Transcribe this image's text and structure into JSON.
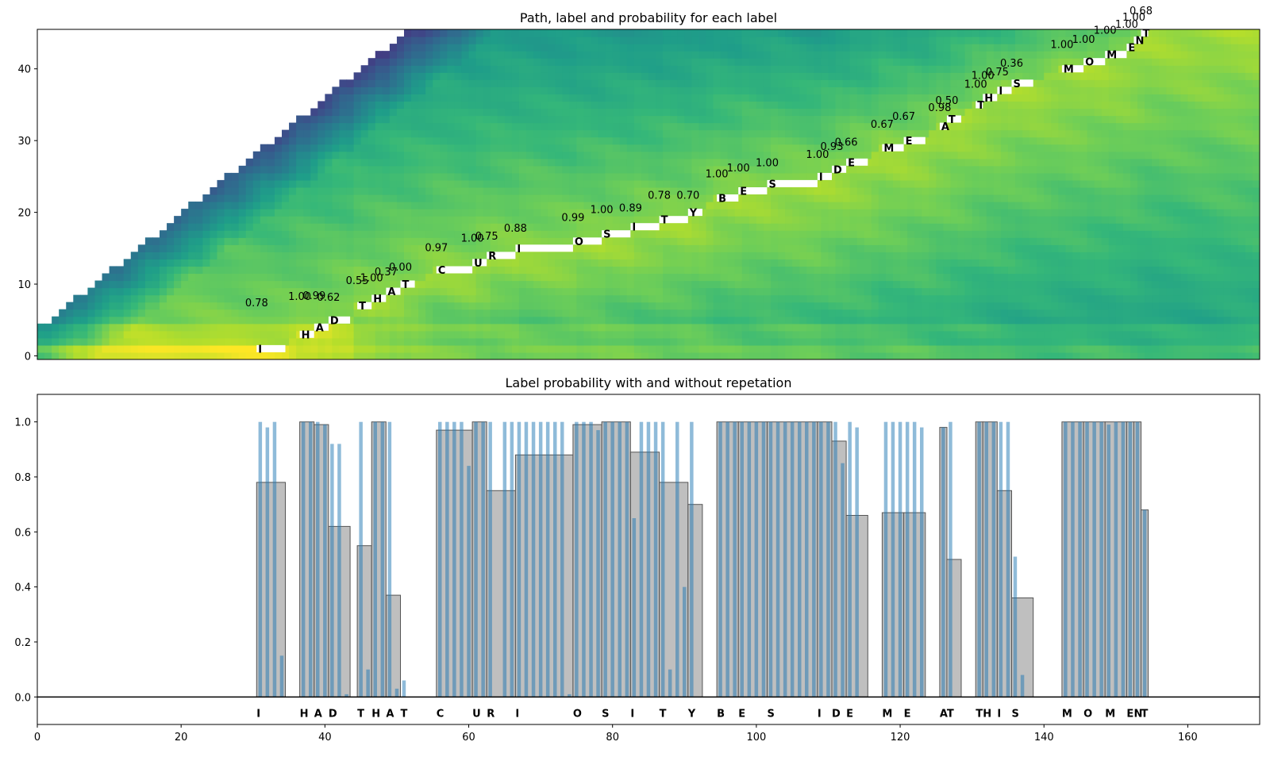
{
  "chart_data": [
    {
      "type": "heatmap",
      "title": "Path, label and probability for each label",
      "xlim": [
        0,
        170
      ],
      "ylim": [
        0,
        45
      ],
      "yticks": [
        0,
        10,
        20,
        30,
        40
      ],
      "colormap": "viridis",
      "segments": [
        {
          "label": "I",
          "start": 30.5,
          "end": 34.5,
          "y": 1,
          "score": 0.78
        },
        {
          "label": "H",
          "start": 36.5,
          "end": 38.5,
          "y": 3,
          "score": 1.0
        },
        {
          "label": "A",
          "start": 38.5,
          "end": 40.5,
          "y": 4,
          "score": 0.99
        },
        {
          "label": "D",
          "start": 40.5,
          "end": 43.5,
          "y": 5,
          "score": 0.62
        },
        {
          "label": "T",
          "start": 44.5,
          "end": 46.5,
          "y": 7,
          "score": 0.55
        },
        {
          "label": "H",
          "start": 46.5,
          "end": 48.5,
          "y": 8,
          "score": 1.0
        },
        {
          "label": "A",
          "start": 48.5,
          "end": 50.5,
          "y": 9,
          "score": 0.37
        },
        {
          "label": "T",
          "start": 50.5,
          "end": 52.5,
          "y": 10,
          "score": 0.0
        },
        {
          "label": "C",
          "start": 55.5,
          "end": 60.5,
          "y": 12,
          "score": 0.97
        },
        {
          "label": "U",
          "start": 60.5,
          "end": 62.5,
          "y": 13,
          "score": 1.0
        },
        {
          "label": "R",
          "start": 62.5,
          "end": 66.5,
          "y": 14,
          "score": 0.75
        },
        {
          "label": "I",
          "start": 66.5,
          "end": 74.5,
          "y": 15,
          "score": 0.88
        },
        {
          "label": "O",
          "start": 74.5,
          "end": 78.5,
          "y": 16,
          "score": 0.99
        },
        {
          "label": "S",
          "start": 78.5,
          "end": 82.5,
          "y": 17,
          "score": 1.0
        },
        {
          "label": "I",
          "start": 82.5,
          "end": 86.5,
          "y": 18,
          "score": 0.89
        },
        {
          "label": "T",
          "start": 86.5,
          "end": 90.5,
          "y": 19,
          "score": 0.78
        },
        {
          "label": "Y",
          "start": 90.5,
          "end": 92.5,
          "y": 20,
          "score": 0.7
        },
        {
          "label": "B",
          "start": 94.5,
          "end": 97.5,
          "y": 22,
          "score": 1.0
        },
        {
          "label": "E",
          "start": 97.5,
          "end": 101.5,
          "y": 23,
          "score": 1.0
        },
        {
          "label": "S",
          "start": 101.5,
          "end": 108.5,
          "y": 24,
          "score": 1.0
        },
        {
          "label": "I",
          "start": 108.5,
          "end": 110.5,
          "y": 25,
          "score": 1.0
        },
        {
          "label": "D",
          "start": 110.5,
          "end": 112.5,
          "y": 26,
          "score": 0.93
        },
        {
          "label": "E",
          "start": 112.5,
          "end": 115.5,
          "y": 27,
          "score": 0.66
        },
        {
          "label": "M",
          "start": 117.5,
          "end": 120.5,
          "y": 29,
          "score": 0.67
        },
        {
          "label": "E",
          "start": 120.5,
          "end": 123.5,
          "y": 30,
          "score": 0.67
        },
        {
          "label": "A",
          "start": 125.5,
          "end": 126.5,
          "y": 32,
          "score": 0.98
        },
        {
          "label": "T",
          "start": 126.5,
          "end": 128.5,
          "y": 33,
          "score": 0.5
        },
        {
          "label": "T",
          "start": 130.5,
          "end": 131.5,
          "y": 35,
          "score": 1.0
        },
        {
          "label": "H",
          "start": 131.5,
          "end": 133.5,
          "y": 36,
          "score": 1.0
        },
        {
          "label": "I",
          "start": 133.5,
          "end": 135.5,
          "y": 37,
          "score": 0.75
        },
        {
          "label": "S",
          "start": 135.5,
          "end": 138.5,
          "y": 38,
          "score": 0.36
        },
        {
          "label": "M",
          "start": 142.5,
          "end": 145.5,
          "y": 40,
          "score": 1.0
        },
        {
          "label": "O",
          "start": 145.5,
          "end": 148.5,
          "y": 41,
          "score": 1.0
        },
        {
          "label": "M",
          "start": 148.5,
          "end": 151.5,
          "y": 42,
          "score": 1.0
        },
        {
          "label": "E",
          "start": 151.5,
          "end": 152.5,
          "y": 43,
          "score": 1.0
        },
        {
          "label": "N",
          "start": 152.5,
          "end": 153.5,
          "y": 44,
          "score": 1.0
        },
        {
          "label": "T",
          "start": 153.5,
          "end": 154.5,
          "y": 45,
          "score": 0.68
        }
      ]
    },
    {
      "type": "bar",
      "title": "Label probability with and without repetation",
      "xlim": [
        0,
        170
      ],
      "ylim": [
        -0.1,
        1.1
      ],
      "xticks": [
        0,
        20,
        40,
        60,
        80,
        100,
        120,
        140,
        160
      ],
      "yticks": [
        "0.0",
        "0.2",
        "0.4",
        "0.6",
        "0.8",
        "1.0"
      ],
      "series": [
        {
          "kind": "segment-average",
          "color": "#bfbfbf",
          "values": [
            0.78,
            1.0,
            0.99,
            0.62,
            0.55,
            1.0,
            0.37,
            0.0,
            0.97,
            1.0,
            0.75,
            0.88,
            0.99,
            1.0,
            0.89,
            0.78,
            0.7,
            1.0,
            1.0,
            1.0,
            1.0,
            0.93,
            0.66,
            0.67,
            0.67,
            0.98,
            0.5,
            1.0,
            1.0,
            0.75,
            0.36,
            1.0,
            1.0,
            1.0,
            1.0,
            1.0,
            0.68
          ]
        },
        {
          "kind": "per-frame",
          "color": "#1f77b4",
          "x": [
            31,
            32,
            33,
            34,
            37,
            38,
            39,
            40,
            41,
            42,
            43,
            45,
            46,
            47,
            48,
            49,
            50,
            51,
            52,
            56,
            57,
            58,
            59,
            60,
            61,
            62,
            63,
            64,
            65,
            66,
            67,
            68,
            69,
            70,
            71,
            72,
            73,
            74,
            75,
            76,
            77,
            78,
            79,
            80,
            81,
            82,
            83,
            84,
            85,
            86,
            87,
            88,
            89,
            90,
            91,
            92,
            95,
            96,
            97,
            98,
            99,
            100,
            101,
            102,
            103,
            104,
            105,
            106,
            107,
            108,
            109,
            110,
            111,
            112,
            113,
            114,
            115,
            118,
            119,
            120,
            121,
            122,
            123,
            126,
            127,
            128,
            131,
            132,
            133,
            134,
            135,
            136,
            137,
            143,
            144,
            145,
            146,
            147,
            148,
            149,
            150,
            151,
            152,
            153,
            154
          ],
          "values": [
            1.0,
            0.98,
            1.0,
            0.15,
            1.0,
            1.0,
            1.0,
            0.99,
            0.92,
            0.92,
            0.01,
            1.0,
            0.1,
            1.0,
            1.0,
            1.0,
            0.03,
            0.06,
            0.0,
            1.0,
            1.0,
            1.0,
            1.0,
            0.84,
            1.0,
            1.0,
            1.0,
            0.0,
            1.0,
            1.0,
            1.0,
            1.0,
            1.0,
            1.0,
            1.0,
            1.0,
            1.0,
            0.01,
            1.0,
            1.0,
            1.0,
            0.97,
            1.0,
            1.0,
            1.0,
            1.0,
            0.65,
            1.0,
            1.0,
            1.0,
            1.0,
            0.1,
            1.0,
            0.4,
            1.0,
            0.0,
            1.0,
            1.0,
            1.0,
            1.0,
            1.0,
            1.0,
            1.0,
            1.0,
            1.0,
            1.0,
            1.0,
            1.0,
            1.0,
            1.0,
            1.0,
            1.0,
            1.0,
            0.85,
            1.0,
            0.98,
            0.0,
            1.0,
            1.0,
            1.0,
            1.0,
            1.0,
            0.98,
            0.98,
            1.0,
            0.0,
            1.0,
            1.0,
            1.0,
            1.0,
            1.0,
            0.51,
            0.08,
            1.0,
            1.0,
            1.0,
            1.0,
            1.0,
            1.0,
            0.99,
            1.0,
            1.0,
            1.0,
            1.0,
            0.68
          ]
        }
      ]
    }
  ]
}
